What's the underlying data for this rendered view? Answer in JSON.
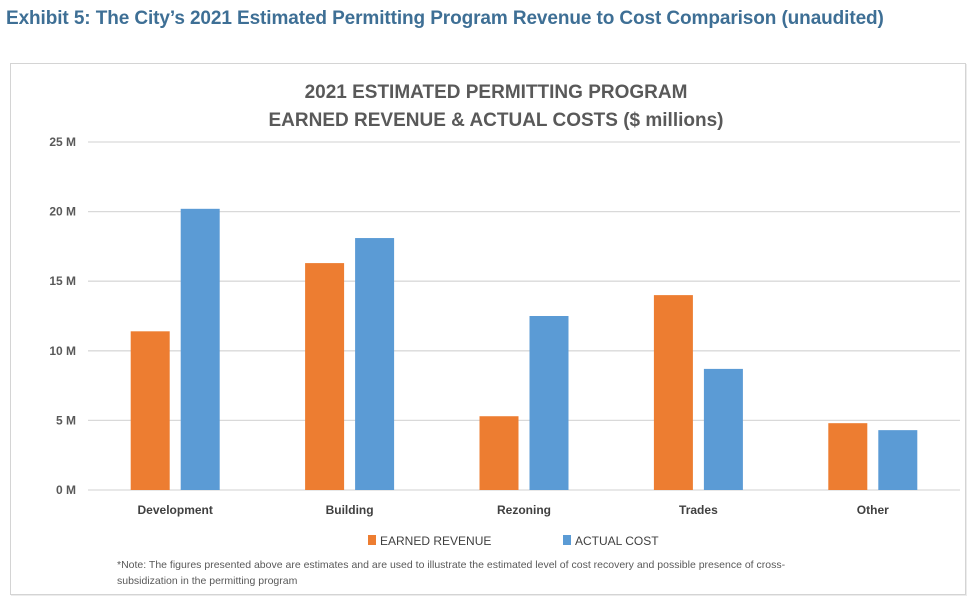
{
  "exhibit_title": "Exhibit 5: The City’s 2021 Estimated Permitting Program Revenue to Cost Comparison (unaudited)",
  "colors": {
    "earned_revenue": "#ed7d31",
    "actual_cost": "#5b9bd5",
    "exhibit_title": "#3e6f95"
  },
  "chart_data": {
    "type": "bar",
    "title": [
      "2021 ESTIMATED PERMITTING PROGRAM",
      "EARNED REVENUE & ACTUAL COSTS ($ millions)"
    ],
    "xlabel": "",
    "ylabel": "",
    "categories": [
      "Development",
      "Building",
      "Rezoning",
      "Trades",
      "Other"
    ],
    "series": [
      {
        "name": "EARNED REVENUE",
        "color": "#ed7d31",
        "values": [
          11.4,
          16.3,
          5.3,
          14.0,
          4.8
        ]
      },
      {
        "name": "ACTUAL COST",
        "color": "#5b9bd5",
        "values": [
          20.2,
          18.1,
          12.5,
          8.7,
          4.3
        ]
      }
    ],
    "ylim": [
      0,
      25
    ],
    "yticks": [
      0,
      5,
      10,
      15,
      20,
      25
    ],
    "ytick_labels": [
      "0 M",
      "5 M",
      "10 M",
      "15 M",
      "20 M",
      "25 M"
    ],
    "grid": true,
    "legend_position": "bottom",
    "note": [
      "*Note: The figures presented above are estimates and are used to illustrate the estimated level of cost recovery and possible presence of cross-",
      "subsidization in the permitting program"
    ]
  }
}
